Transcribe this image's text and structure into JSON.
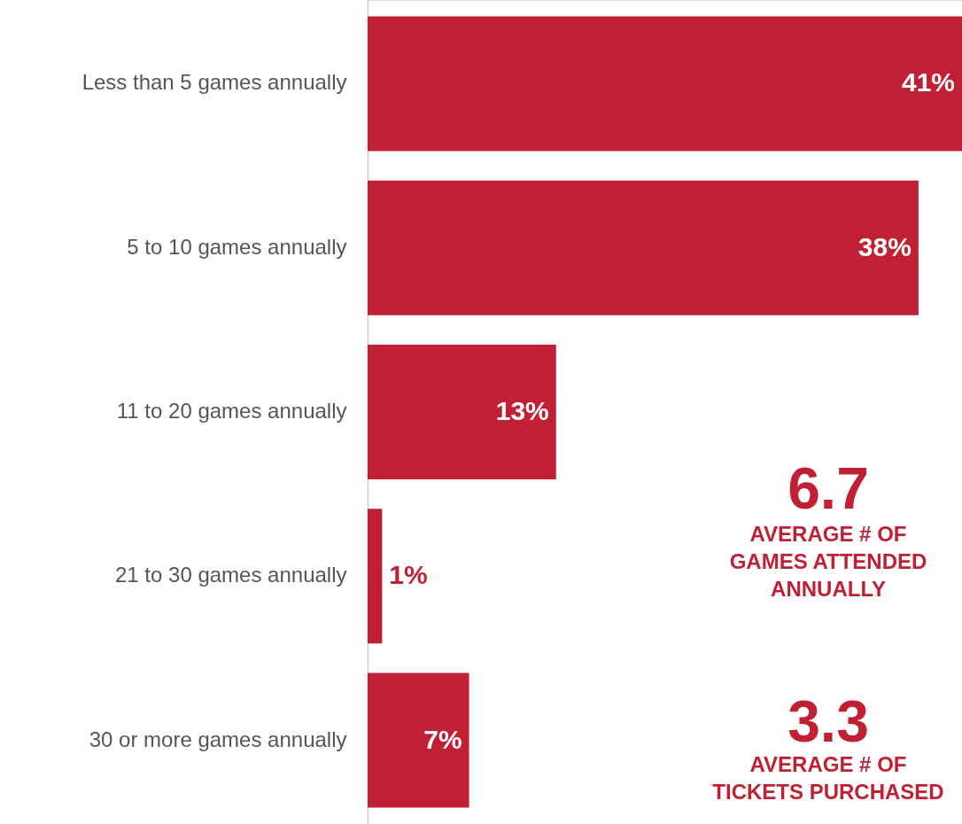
{
  "chart_data": {
    "type": "bar",
    "orientation": "horizontal",
    "categories": [
      "Less than 5 games annually",
      "5 to 10 games annually",
      "11 to 20 games annually",
      "21 to 30 games annually",
      "30 or more games annually"
    ],
    "values": [
      41,
      38,
      13,
      1,
      7
    ],
    "value_labels": [
      "41%",
      "38%",
      "13%",
      "1%",
      "7%"
    ],
    "color": "#c01f34",
    "tick_labels": "y",
    "annotations": [
      "6.7",
      "AVERAGE # OF\nGAMES ATTENDED\nANNUALLY",
      "3.3",
      "AVERAGE # OF\nTICKETS PURCHASED"
    ],
    "xlim": [
      0,
      41
    ]
  }
}
